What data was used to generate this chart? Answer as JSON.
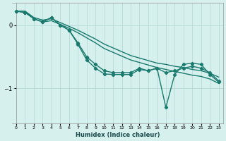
{
  "xlabel": "Humidex (Indice chaleur)",
  "bg_color": "#d6f0ee",
  "line_color": "#1a7a6e",
  "grid_color": "#b8dbd8",
  "xlim": [
    -0.5,
    23.5
  ],
  "ylim": [
    -1.55,
    0.35
  ],
  "yticks": [
    0,
    -1
  ],
  "xticks": [
    0,
    1,
    2,
    3,
    4,
    5,
    6,
    7,
    8,
    9,
    10,
    11,
    12,
    13,
    14,
    15,
    16,
    17,
    18,
    19,
    20,
    21,
    22,
    23
  ],
  "lines": [
    {
      "x": [
        0,
        1,
        2,
        3,
        4,
        5,
        6,
        7,
        8,
        9,
        10,
        11,
        12,
        13,
        14,
        15,
        16,
        17,
        18,
        19,
        20,
        21,
        22,
        23
      ],
      "y": [
        0.22,
        0.22,
        0.12,
        0.08,
        0.1,
        0.04,
        -0.02,
        -0.08,
        -0.15,
        -0.22,
        -0.3,
        -0.36,
        -0.42,
        -0.48,
        -0.52,
        -0.56,
        -0.6,
        -0.62,
        -0.65,
        -0.67,
        -0.7,
        -0.72,
        -0.76,
        -0.82
      ],
      "marker": null,
      "markersize": 0,
      "linewidth": 1.0
    },
    {
      "x": [
        0,
        1,
        2,
        3,
        4,
        5,
        6,
        7,
        8,
        9,
        10,
        11,
        12,
        13,
        14,
        15,
        16,
        17,
        18,
        19,
        20,
        21,
        22,
        23
      ],
      "y": [
        0.22,
        0.22,
        0.1,
        0.05,
        0.07,
        0.01,
        -0.05,
        -0.12,
        -0.2,
        -0.28,
        -0.37,
        -0.43,
        -0.49,
        -0.55,
        -0.59,
        -0.63,
        -0.67,
        -0.7,
        -0.73,
        -0.76,
        -0.79,
        -0.81,
        -0.85,
        -0.92
      ],
      "marker": null,
      "markersize": 0,
      "linewidth": 1.0
    },
    {
      "x": [
        0,
        1,
        2,
        3,
        4,
        5,
        6,
        7,
        8,
        9,
        10,
        11,
        12,
        13,
        14,
        15,
        16,
        17,
        18,
        19,
        20,
        21,
        22,
        23
      ],
      "y": [
        0.22,
        0.2,
        0.1,
        0.05,
        0.12,
        0.0,
        -0.08,
        -0.28,
        -0.5,
        -0.62,
        -0.72,
        -0.75,
        -0.75,
        -0.75,
        -0.68,
        -0.72,
        -0.68,
        -0.75,
        -0.72,
        -0.68,
        -0.65,
        -0.68,
        -0.75,
        -0.88
      ],
      "marker": "D",
      "markersize": 2.2,
      "linewidth": 1.0
    },
    {
      "x": [
        0,
        1,
        2,
        3,
        4,
        5,
        6,
        7,
        8,
        9,
        10,
        11,
        12,
        13,
        14,
        15,
        16,
        17,
        18,
        19,
        20,
        21,
        22,
        23
      ],
      "y": [
        0.22,
        0.2,
        0.1,
        0.05,
        0.12,
        0.0,
        -0.08,
        -0.3,
        -0.55,
        -0.68,
        -0.77,
        -0.78,
        -0.78,
        -0.78,
        -0.7,
        -0.72,
        -0.68,
        -1.3,
        -0.78,
        -0.62,
        -0.6,
        -0.62,
        -0.78,
        -0.9
      ],
      "marker": "D",
      "markersize": 2.2,
      "linewidth": 1.0
    }
  ]
}
